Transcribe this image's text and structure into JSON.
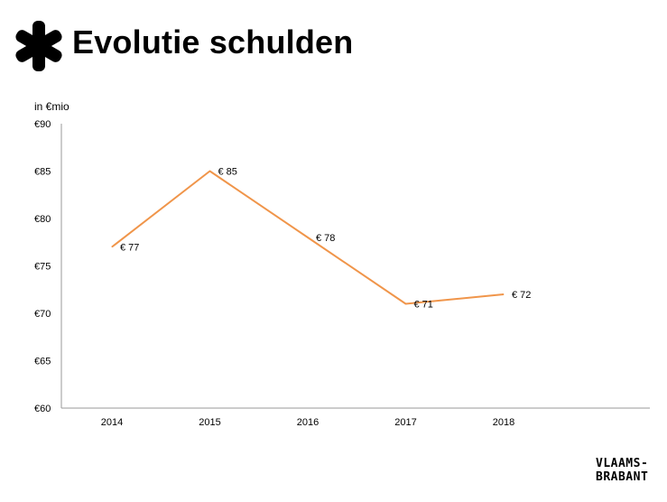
{
  "header": {
    "title": "Evolutie schulden",
    "logo_icon": "asterisk-logo-icon"
  },
  "brand": {
    "line1": "VLAAMS-",
    "line2": "BRABANT"
  },
  "colors": {
    "series": "#f0954a",
    "axis": "#9a9a9a",
    "text": "#000000"
  },
  "chart_data": {
    "type": "line",
    "title": "Evolutie schulden",
    "ylabel": "in €mio",
    "xlabel": "",
    "ylim": [
      60,
      90
    ],
    "ytick_step": 5,
    "ytick_labels": [
      "€60",
      "€65",
      "€70",
      "€75",
      "€80",
      "€85",
      "€90"
    ],
    "categories": [
      "2014",
      "2015",
      "2016",
      "2017",
      "2018"
    ],
    "series": [
      {
        "values": [
          77,
          85,
          78,
          71,
          72
        ],
        "labels": [
          "€ 77",
          "€ 85",
          "€ 78",
          "€ 71",
          "€ 72"
        ]
      }
    ],
    "grid": false,
    "legend": "none"
  }
}
